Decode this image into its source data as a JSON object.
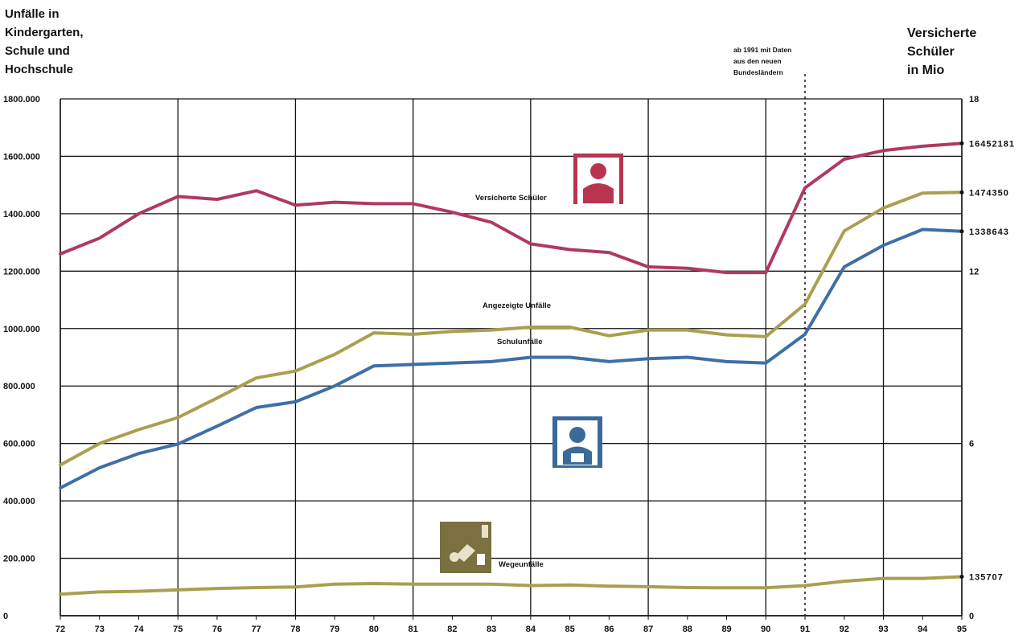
{
  "chart_data": {
    "type": "line",
    "left_axis_title": "Unfälle in\nKindergarten,\nSchule und\nHochschule",
    "right_axis_title": "Versicherte\nSchüler\nin Mio",
    "annotation": "ab 1991 mit Daten\naus den neuen\nBundesländern",
    "x": [
      "72",
      "73",
      "74",
      "75",
      "76",
      "77",
      "78",
      "79",
      "80",
      "81",
      "82",
      "83",
      "84",
      "85",
      "86",
      "87",
      "88",
      "89",
      "90",
      "91",
      "92",
      "93",
      "94",
      "95"
    ],
    "left_ylim": [
      0,
      1800000
    ],
    "left_ticks": [
      "0",
      "200.000",
      "400.000",
      "600.000",
      "800.000",
      "1000.000",
      "1200.000",
      "1400.000",
      "1600.000",
      "1800.000"
    ],
    "right_ylim": [
      0,
      18
    ],
    "right_ticks": [
      "0",
      "6",
      "12",
      "18"
    ],
    "grid": true,
    "series": [
      {
        "name": "Versicherte Schüler",
        "axis": "right",
        "color": "#b03a5c",
        "end_label": "16452181",
        "values": [
          12.6,
          13.15,
          14.0,
          14.6,
          14.5,
          14.8,
          14.3,
          14.4,
          14.35,
          14.35,
          14.05,
          13.7,
          12.95,
          12.75,
          12.65,
          12.15,
          12.1,
          11.95,
          11.95,
          14.9,
          15.9,
          16.2,
          16.35,
          16.45
        ]
      },
      {
        "name": "Angezeigte Unfälle",
        "axis": "left",
        "color": "#a8a050",
        "end_label": "1474350",
        "values": [
          525000,
          600000,
          648000,
          690000,
          758000,
          828000,
          852000,
          910000,
          985000,
          980000,
          990000,
          995000,
          1005000,
          1005000,
          975000,
          995000,
          995000,
          978000,
          972000,
          1085000,
          1340000,
          1420000,
          1472000,
          1474350
        ]
      },
      {
        "name": "Schulunfälle",
        "axis": "left",
        "color": "#3e6fa6",
        "end_label": "1338643",
        "values": [
          445000,
          515000,
          565000,
          598000,
          660000,
          725000,
          745000,
          800000,
          870000,
          875000,
          880000,
          885000,
          900000,
          900000,
          885000,
          895000,
          900000,
          885000,
          880000,
          980000,
          1215000,
          1290000,
          1345000,
          1338643
        ]
      },
      {
        "name": "Wegeunfälle",
        "axis": "left",
        "color": "#a8a050",
        "end_label": "135707",
        "values": [
          75000,
          83000,
          85000,
          90000,
          95000,
          98000,
          100000,
          110000,
          112000,
          110000,
          110000,
          110000,
          105000,
          107000,
          103000,
          101000,
          98000,
          97000,
          97000,
          105000,
          120000,
          130000,
          130000,
          135707
        ]
      }
    ]
  }
}
